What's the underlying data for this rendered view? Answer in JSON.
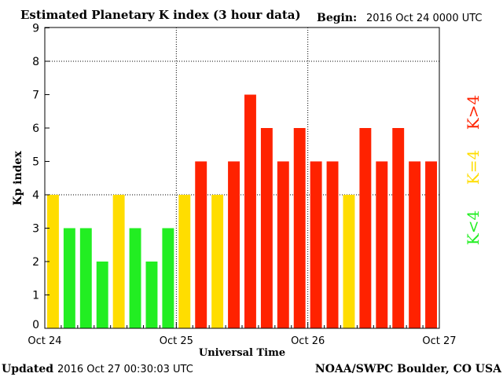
{
  "chart_data": {
    "type": "bar",
    "title": "Estimated Planetary K index (3 hour data)",
    "begin_label": "Begin:",
    "begin_value": "2016 Oct 24 0000 UTC",
    "xlabel": "Universal Time",
    "ylabel": "Kp index",
    "ylim": [
      0,
      9
    ],
    "yticks": [
      "0",
      "1",
      "2",
      "3",
      "4",
      "5",
      "6",
      "7",
      "8",
      "9"
    ],
    "xticks": [
      "Oct 24",
      "Oct 25",
      "Oct 26",
      "Oct 27"
    ],
    "values": [
      4,
      3,
      3,
      2,
      4,
      3,
      2,
      3,
      4,
      5,
      4,
      5,
      7,
      6,
      5,
      6,
      5,
      5,
      4,
      6,
      5,
      6,
      5,
      5
    ],
    "grid": "dotted, at Kp 4 and 8 and at day boundaries",
    "legend": [
      {
        "label": "K>4",
        "color": "#ff2200"
      },
      {
        "label": "K=4",
        "color": "#ffdd00"
      },
      {
        "label": "K<4",
        "color": "#22ee22"
      }
    ],
    "legend_placement": "right"
  },
  "footer": {
    "updated_label": "Updated",
    "updated_value": "2016 Oct 27 00:30:03 UTC",
    "source": "NOAA/SWPC Boulder, CO USA"
  }
}
